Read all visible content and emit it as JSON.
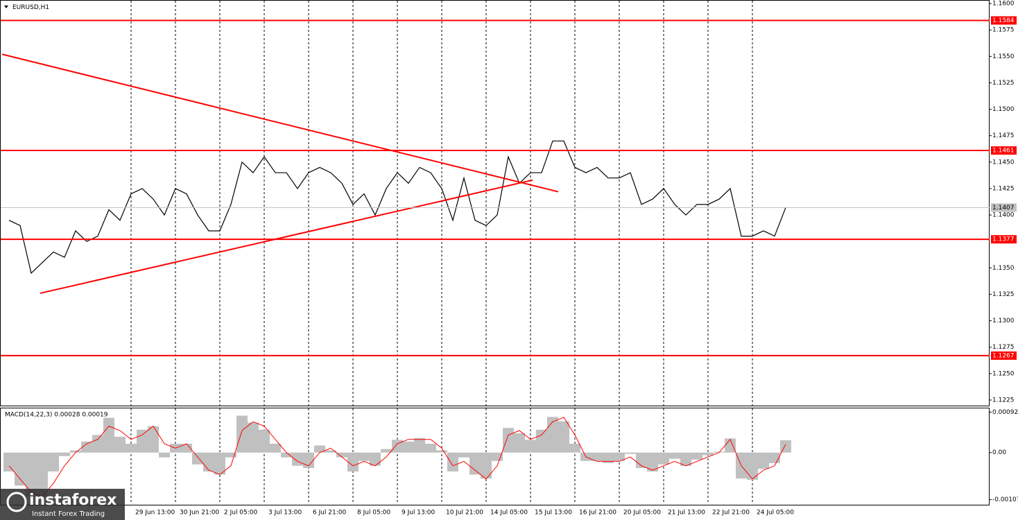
{
  "chart_data": [
    {
      "type": "line",
      "title": "EURUSD,H1",
      "color": "#000000",
      "categories": [
        null,
        null,
        null,
        null,
        null,
        null,
        null,
        null,
        null,
        null,
        null,
        "29 Jun 13:00",
        null,
        null,
        null,
        "30 Jun 21:00",
        null,
        null,
        null,
        "2 Jul 05:00",
        null,
        null,
        null,
        "3 Jul 13:00",
        null,
        null,
        null,
        "6 Jul 21:00",
        null,
        null,
        null,
        "8 Jul 05:00",
        null,
        null,
        null,
        "9 Jul 13:00",
        null,
        null,
        null,
        "10 Jul 21:00",
        null,
        null,
        null,
        "14 Jul 05:00",
        null,
        null,
        null,
        "15 Jul 13:00",
        null,
        null,
        null,
        "16 Jul 21:00",
        null,
        null,
        null,
        "20 Jul 05:00",
        null,
        null,
        null,
        "21 Jul 13:00",
        null,
        null,
        null,
        "22 Jul 21:00",
        null,
        null,
        null,
        "24 Jul 05:00",
        null,
        null,
        null
      ],
      "values": [
        1.1395,
        1.139,
        1.1345,
        1.1355,
        1.1365,
        1.136,
        1.1385,
        1.1375,
        1.138,
        1.1405,
        1.1395,
        1.142,
        1.1425,
        1.1415,
        1.14,
        1.1425,
        1.142,
        1.14,
        1.1385,
        1.1385,
        1.141,
        1.145,
        1.144,
        1.1455,
        1.144,
        1.144,
        1.1425,
        1.144,
        1.1445,
        1.144,
        1.143,
        1.141,
        1.142,
        1.14,
        1.1425,
        1.144,
        1.143,
        1.1445,
        1.144,
        1.1425,
        1.1395,
        1.1435,
        1.1395,
        1.139,
        1.14,
        1.1455,
        1.143,
        1.144,
        1.144,
        1.147,
        1.147,
        1.1445,
        1.144,
        1.1445,
        1.1435,
        1.1435,
        1.144,
        1.141,
        1.1415,
        1.1425,
        1.141,
        1.14,
        1.141,
        1.141,
        1.1415,
        1.1425,
        1.138,
        1.138,
        1.1385,
        1.138,
        1.1407
      ],
      "ylim": [
        1.122,
        1.1603
      ],
      "yticks": [
        {
          "value": 1.1225,
          "label": "1.1225"
        },
        {
          "value": 1.125,
          "label": "1.1250"
        },
        {
          "value": 1.1275,
          "label": "1.1275"
        },
        {
          "value": 1.13,
          "label": "1.1300"
        },
        {
          "value": 1.1325,
          "label": "1.1325"
        },
        {
          "value": 1.135,
          "label": "1.1350"
        },
        {
          "value": 1.14,
          "label": "1.1400"
        },
        {
          "value": 1.1425,
          "label": "1.1425"
        },
        {
          "value": 1.145,
          "label": "1.1450"
        },
        {
          "value": 1.1475,
          "label": "1.1475"
        },
        {
          "value": 1.15,
          "label": "1.1500"
        },
        {
          "value": 1.1525,
          "label": "1.1525"
        },
        {
          "value": 1.155,
          "label": "1.1550"
        },
        {
          "value": 1.1575,
          "label": "1.1575"
        },
        {
          "value": 1.16,
          "label": "1.1600"
        }
      ],
      "levels": [
        1.1584,
        1.1461,
        1.1377,
        1.1267
      ],
      "level_color": "#ff0000",
      "last_price": 1.1407,
      "trendlines": [
        [
          1.1552,
          1.1422
        ],
        [
          1.1326,
          1.1433
        ]
      ],
      "grid": true
    },
    {
      "type": "macd",
      "title": "MACD(14,22,3) 0.00028 0.00019",
      "color": "#c0c0c0",
      "signal_color": "#ff0000",
      "values": [
        -0.00043,
        -0.00075,
        -0.00098,
        -0.001,
        -0.00043,
        -8e-05,
        5e-05,
        0.00025,
        0.0004,
        0.00079,
        0.00036,
        0.0002,
        0.00052,
        0.0006,
        -0.00011,
        0.0002,
        0.0002,
        -0.00027,
        -0.00043,
        -0.0005,
        -0.00011,
        0.00084,
        0.00068,
        0.00052,
        0.0002,
        -0.00011,
        -0.0003,
        -0.00035,
        0.00016,
        5e-05,
        -0.00011,
        -0.00043,
        -0.00019,
        -0.0003,
        8e-05,
        0.00029,
        0.00025,
        0.00033,
        0.0002,
        5e-05,
        -0.00043,
        -0.00011,
        -0.0005,
        -0.00059,
        -0.00019,
        0.00056,
        0.00044,
        0.00029,
        0.00052,
        0.00081,
        0.00071,
        0.0002,
        -0.00019,
        -0.00019,
        -0.00024,
        -0.00019,
        -3e-05,
        -0.00035,
        -0.00043,
        -0.00027,
        -0.00014,
        -0.0003,
        -0.00016,
        -6e-05,
        2e-05,
        0.00032,
        -0.00059,
        -0.00062,
        -0.00037,
        -0.00024,
        0.00028
      ],
      "signal": [
        -0.0003,
        -0.0006,
        -0.0009,
        -0.001,
        -0.0007,
        -0.0003,
        0,
        0.0002,
        0.0003,
        0.0006,
        0.0005,
        0.0003,
        0.0004,
        0.0006,
        0.0002,
        0.0001,
        0.0002,
        -0.0001,
        -0.0004,
        -0.0005,
        -0.0003,
        0.0005,
        0.0007,
        0.0006,
        0.0003,
        0,
        -0.0002,
        -0.0003,
        0,
        0.0001,
        -0.0001,
        -0.0003,
        -0.0002,
        -0.0003,
        -0.0001,
        0.0002,
        0.0003,
        0.0003,
        0.0003,
        0.0001,
        -0.0003,
        -0.0002,
        -0.0004,
        -0.0006,
        -0.0003,
        0.0004,
        0.0005,
        0.0003,
        0.0004,
        0.0007,
        0.0008,
        0.0004,
        -0.0001,
        -0.0002,
        -0.0002,
        -0.0002,
        -0.0001,
        -0.0003,
        -0.0004,
        -0.0003,
        -0.0002,
        -0.0003,
        -0.0002,
        -0.0001,
        0,
        0.0003,
        -0.0003,
        -0.0006,
        -0.0004,
        -0.0003,
        0.00019
      ],
      "ylim": [
        -0.00117,
        0.00102
      ],
      "yticks": [
        -0.00107,
        {
          "value": 0,
          "label": "0.00"
        },
        0.00092
      ]
    }
  ],
  "watermark": {
    "brand": "instaforex",
    "tagline": "Instant Forex Trading"
  }
}
